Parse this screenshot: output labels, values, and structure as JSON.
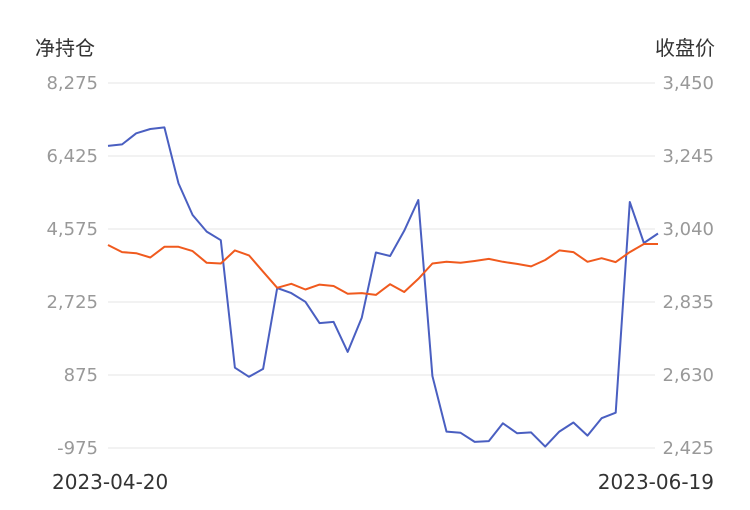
{
  "chart_data": [
    {
      "type": "line",
      "left_axis_label": "净持仓",
      "right_axis_label": "收盘价",
      "left_ticks": [
        "8,275",
        "6,425",
        "4,575",
        "2,725",
        "875",
        "-975"
      ],
      "right_ticks": [
        "3,450",
        "3,245",
        "3,040",
        "2,835",
        "2,630",
        "2,425"
      ],
      "left_ylim": [
        -975,
        8275
      ],
      "right_ylim": [
        2425,
        3450
      ],
      "x_start_label": "2023-04-20",
      "x_end_label": "2023-06-19",
      "grid": true,
      "series": [
        {
          "axis": "left",
          "color": "#4a5fc1",
          "values": [
            6680,
            6720,
            7000,
            7110,
            7150,
            5730,
            4930,
            4510,
            4290,
            1060,
            830,
            1030,
            3080,
            2950,
            2730,
            2190,
            2220,
            1460,
            2330,
            3980,
            3890,
            4530,
            5310,
            850,
            -560,
            -590,
            -820,
            -800,
            -350,
            -600,
            -580,
            -940,
            -560,
            -330,
            -660,
            -220,
            -80,
            5260,
            4220,
            4460
          ]
        },
        {
          "axis": "right",
          "color": "#f05a1e",
          "values": [
            2995,
            2975,
            2972,
            2960,
            2990,
            2990,
            2978,
            2945,
            2943,
            2980,
            2966,
            2920,
            2875,
            2886,
            2870,
            2884,
            2880,
            2858,
            2860,
            2855,
            2885,
            2863,
            2900,
            2943,
            2948,
            2945,
            2950,
            2956,
            2948,
            2942,
            2935,
            2953,
            2980,
            2975,
            2948,
            2958,
            2947,
            2975,
            2998,
            2998
          ]
        }
      ]
    }
  ]
}
